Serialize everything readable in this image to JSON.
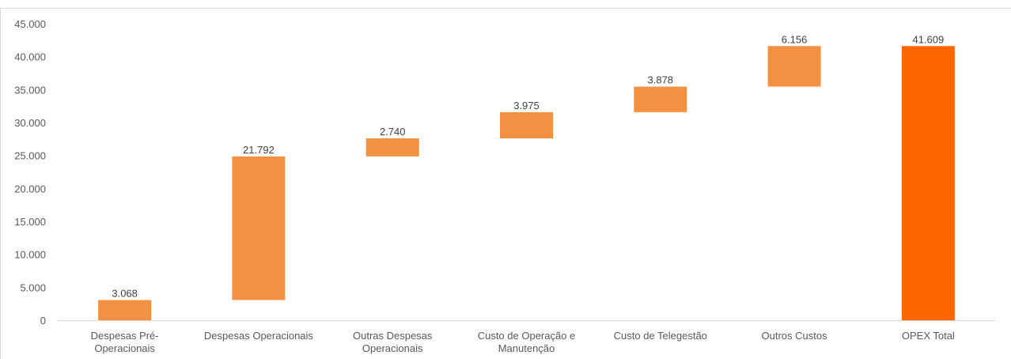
{
  "chart_data": {
    "type": "waterfall",
    "categories": [
      "Despesas Pré-Operacionais",
      "Despesas Operacionais",
      "Outras Despesas Operacionais",
      "Custo de Operação e Manutenção",
      "Custo de Telegestão",
      "Outros Custos",
      "OPEX Total"
    ],
    "values": [
      3068,
      21792,
      2740,
      3975,
      3878,
      6156,
      41609
    ],
    "value_labels": [
      "3.068",
      "21.792",
      "2.740",
      "3.975",
      "3.878",
      "6.156",
      "41.609"
    ],
    "measure": [
      "relative",
      "relative",
      "relative",
      "relative",
      "relative",
      "relative",
      "total"
    ],
    "colors": [
      "#f29141",
      "#f29141",
      "#f29141",
      "#f29141",
      "#f29141",
      "#f29141",
      "#ff6600"
    ],
    "ylim": [
      0,
      45000
    ],
    "yticks": [
      0,
      {
        "value": 5000,
        "label": "5.000"
      },
      {
        "value": 10000,
        "label": "10.000"
      },
      {
        "value": 15000,
        "label": "15.000"
      },
      {
        "value": 20000,
        "label": "20.000"
      },
      {
        "value": 25000,
        "label": "25.000"
      },
      {
        "value": 30000,
        "label": "30.000"
      },
      {
        "value": 35000,
        "label": "35.000"
      },
      {
        "value": 40000,
        "label": "40.000"
      },
      {
        "value": 45000,
        "label": "45.000"
      }
    ],
    "grid": false
  }
}
